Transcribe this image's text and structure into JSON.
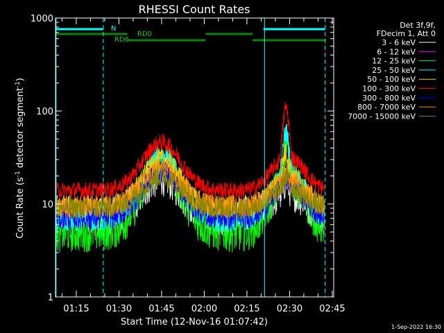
{
  "chart_data": {
    "type": "line",
    "title": "RHESSI Count Rates",
    "ylabel_main": "Count Rate (s",
    "ylabel_sup": "-1",
    "ylabel_mid": " detector segment",
    "ylabel_sup2": "-1",
    "ylabel_end": ")",
    "xlabel": "Start Time (12-Nov-16 01:07:42)",
    "ylim": [
      1,
      1000
    ],
    "yscale": "log",
    "xlim_minutes": [
      67.7,
      165.5
    ],
    "yticks": [
      {
        "value": 1,
        "label": "1"
      },
      {
        "value": 10,
        "label": "10"
      },
      {
        "value": 100,
        "label": "100"
      },
      {
        "value": 1000,
        "label": "1000"
      }
    ],
    "xticks": [
      {
        "minute": 75,
        "label": "01:15"
      },
      {
        "minute": 90,
        "label": "01:30"
      },
      {
        "minute": 105,
        "label": "01:45"
      },
      {
        "minute": 120,
        "label": "02:00"
      },
      {
        "minute": 135,
        "label": "02:15"
      },
      {
        "minute": 150,
        "label": "02:30"
      },
      {
        "minute": 165,
        "label": "02:45"
      }
    ],
    "legend_header": [
      "Det 3f,9f,",
      "FDecim 1, Att 0"
    ],
    "series": [
      {
        "name": "3 - 6 keV",
        "color": "#ffffff",
        "base": 7.5,
        "peak": 20,
        "flare": 20
      },
      {
        "name": "6 - 12 keV",
        "color": "#ff00ff",
        "base": 8.5,
        "peak": 22,
        "flare": 22
      },
      {
        "name": "12 - 25 keV",
        "color": "#00ff00",
        "base": 5,
        "peak": 28,
        "flare": 45
      },
      {
        "name": "25 - 50 keV",
        "color": "#00ffff",
        "base": 6.5,
        "peak": 34,
        "flare": 65
      },
      {
        "name": "50 - 100 keV",
        "color": "#ffcc00",
        "base": 9,
        "peak": 30,
        "flare": 40
      },
      {
        "name": "100 - 300 keV",
        "color": "#ff0000",
        "base": 14,
        "peak": 46,
        "flare": 115
      },
      {
        "name": "300 - 800 keV",
        "color": "#0000ff",
        "base": 7,
        "peak": 22,
        "flare": 22
      },
      {
        "name": "800 - 7000 keV",
        "color": "#ff8800",
        "base": 9.5,
        "peak": 24,
        "flare": 24
      },
      {
        "name": "7000 - 15000 keV",
        "color": "#888800",
        "base": 9,
        "peak": 20,
        "flare": 20
      }
    ],
    "state_bars": [
      {
        "label": "N",
        "color": "#00ffff",
        "label_color": "#00ffff",
        "segments": [
          [
            67.7,
            84.5
          ],
          [
            140.8,
            162.5
          ]
        ]
      },
      {
        "label": "RD0",
        "color": "#008800",
        "label_color": "#00cc00",
        "segments": [
          [
            67.7,
            93
          ],
          [
            120.5,
            137
          ]
        ]
      },
      {
        "label": "RD6",
        "color": "#008800",
        "label_color": "#00cc00",
        "segments": [
          [
            93,
            120.5
          ],
          [
            137,
            162.5
          ]
        ]
      }
    ],
    "vlines": [
      {
        "minute": 67.9,
        "style": "solid"
      },
      {
        "minute": 84.5,
        "style": "dashed"
      },
      {
        "minute": 141.2,
        "style": "solid"
      },
      {
        "minute": 162.5,
        "style": "dashed"
      }
    ]
  },
  "footer": {
    "timestamp": "1-Sep-2022 16:30"
  }
}
